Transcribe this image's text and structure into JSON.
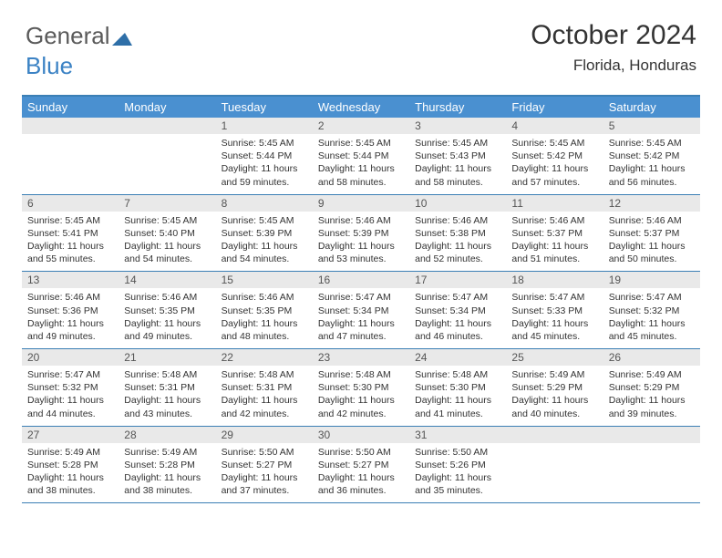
{
  "brand": {
    "part1": "General",
    "part2": "Blue"
  },
  "title": {
    "month": "October 2024",
    "location": "Florida, Honduras"
  },
  "colors": {
    "header_bg": "#4a90d0",
    "border": "#3b7fb5",
    "daynum_bg": "#e9e9e9",
    "text": "#333333",
    "logo_gray": "#5a5a5a",
    "logo_blue": "#3b82c4"
  },
  "typography": {
    "title_fontsize": 30,
    "location_fontsize": 17,
    "header_fontsize": 13,
    "daynum_fontsize": 12,
    "body_fontsize": 10.5
  },
  "daynames": [
    "Sunday",
    "Monday",
    "Tuesday",
    "Wednesday",
    "Thursday",
    "Friday",
    "Saturday"
  ],
  "weeks": [
    [
      {
        "empty": true
      },
      {
        "empty": true
      },
      {
        "n": "1",
        "sr": "Sunrise: 5:45 AM",
        "ss": "Sunset: 5:44 PM",
        "dl": "Daylight: 11 hours and 59 minutes."
      },
      {
        "n": "2",
        "sr": "Sunrise: 5:45 AM",
        "ss": "Sunset: 5:44 PM",
        "dl": "Daylight: 11 hours and 58 minutes."
      },
      {
        "n": "3",
        "sr": "Sunrise: 5:45 AM",
        "ss": "Sunset: 5:43 PM",
        "dl": "Daylight: 11 hours and 58 minutes."
      },
      {
        "n": "4",
        "sr": "Sunrise: 5:45 AM",
        "ss": "Sunset: 5:42 PM",
        "dl": "Daylight: 11 hours and 57 minutes."
      },
      {
        "n": "5",
        "sr": "Sunrise: 5:45 AM",
        "ss": "Sunset: 5:42 PM",
        "dl": "Daylight: 11 hours and 56 minutes."
      }
    ],
    [
      {
        "n": "6",
        "sr": "Sunrise: 5:45 AM",
        "ss": "Sunset: 5:41 PM",
        "dl": "Daylight: 11 hours and 55 minutes."
      },
      {
        "n": "7",
        "sr": "Sunrise: 5:45 AM",
        "ss": "Sunset: 5:40 PM",
        "dl": "Daylight: 11 hours and 54 minutes."
      },
      {
        "n": "8",
        "sr": "Sunrise: 5:45 AM",
        "ss": "Sunset: 5:39 PM",
        "dl": "Daylight: 11 hours and 54 minutes."
      },
      {
        "n": "9",
        "sr": "Sunrise: 5:46 AM",
        "ss": "Sunset: 5:39 PM",
        "dl": "Daylight: 11 hours and 53 minutes."
      },
      {
        "n": "10",
        "sr": "Sunrise: 5:46 AM",
        "ss": "Sunset: 5:38 PM",
        "dl": "Daylight: 11 hours and 52 minutes."
      },
      {
        "n": "11",
        "sr": "Sunrise: 5:46 AM",
        "ss": "Sunset: 5:37 PM",
        "dl": "Daylight: 11 hours and 51 minutes."
      },
      {
        "n": "12",
        "sr": "Sunrise: 5:46 AM",
        "ss": "Sunset: 5:37 PM",
        "dl": "Daylight: 11 hours and 50 minutes."
      }
    ],
    [
      {
        "n": "13",
        "sr": "Sunrise: 5:46 AM",
        "ss": "Sunset: 5:36 PM",
        "dl": "Daylight: 11 hours and 49 minutes."
      },
      {
        "n": "14",
        "sr": "Sunrise: 5:46 AM",
        "ss": "Sunset: 5:35 PM",
        "dl": "Daylight: 11 hours and 49 minutes."
      },
      {
        "n": "15",
        "sr": "Sunrise: 5:46 AM",
        "ss": "Sunset: 5:35 PM",
        "dl": "Daylight: 11 hours and 48 minutes."
      },
      {
        "n": "16",
        "sr": "Sunrise: 5:47 AM",
        "ss": "Sunset: 5:34 PM",
        "dl": "Daylight: 11 hours and 47 minutes."
      },
      {
        "n": "17",
        "sr": "Sunrise: 5:47 AM",
        "ss": "Sunset: 5:34 PM",
        "dl": "Daylight: 11 hours and 46 minutes."
      },
      {
        "n": "18",
        "sr": "Sunrise: 5:47 AM",
        "ss": "Sunset: 5:33 PM",
        "dl": "Daylight: 11 hours and 45 minutes."
      },
      {
        "n": "19",
        "sr": "Sunrise: 5:47 AM",
        "ss": "Sunset: 5:32 PM",
        "dl": "Daylight: 11 hours and 45 minutes."
      }
    ],
    [
      {
        "n": "20",
        "sr": "Sunrise: 5:47 AM",
        "ss": "Sunset: 5:32 PM",
        "dl": "Daylight: 11 hours and 44 minutes."
      },
      {
        "n": "21",
        "sr": "Sunrise: 5:48 AM",
        "ss": "Sunset: 5:31 PM",
        "dl": "Daylight: 11 hours and 43 minutes."
      },
      {
        "n": "22",
        "sr": "Sunrise: 5:48 AM",
        "ss": "Sunset: 5:31 PM",
        "dl": "Daylight: 11 hours and 42 minutes."
      },
      {
        "n": "23",
        "sr": "Sunrise: 5:48 AM",
        "ss": "Sunset: 5:30 PM",
        "dl": "Daylight: 11 hours and 42 minutes."
      },
      {
        "n": "24",
        "sr": "Sunrise: 5:48 AM",
        "ss": "Sunset: 5:30 PM",
        "dl": "Daylight: 11 hours and 41 minutes."
      },
      {
        "n": "25",
        "sr": "Sunrise: 5:49 AM",
        "ss": "Sunset: 5:29 PM",
        "dl": "Daylight: 11 hours and 40 minutes."
      },
      {
        "n": "26",
        "sr": "Sunrise: 5:49 AM",
        "ss": "Sunset: 5:29 PM",
        "dl": "Daylight: 11 hours and 39 minutes."
      }
    ],
    [
      {
        "n": "27",
        "sr": "Sunrise: 5:49 AM",
        "ss": "Sunset: 5:28 PM",
        "dl": "Daylight: 11 hours and 38 minutes."
      },
      {
        "n": "28",
        "sr": "Sunrise: 5:49 AM",
        "ss": "Sunset: 5:28 PM",
        "dl": "Daylight: 11 hours and 38 minutes."
      },
      {
        "n": "29",
        "sr": "Sunrise: 5:50 AM",
        "ss": "Sunset: 5:27 PM",
        "dl": "Daylight: 11 hours and 37 minutes."
      },
      {
        "n": "30",
        "sr": "Sunrise: 5:50 AM",
        "ss": "Sunset: 5:27 PM",
        "dl": "Daylight: 11 hours and 36 minutes."
      },
      {
        "n": "31",
        "sr": "Sunrise: 5:50 AM",
        "ss": "Sunset: 5:26 PM",
        "dl": "Daylight: 11 hours and 35 minutes."
      },
      {
        "empty": true
      },
      {
        "empty": true
      }
    ]
  ]
}
